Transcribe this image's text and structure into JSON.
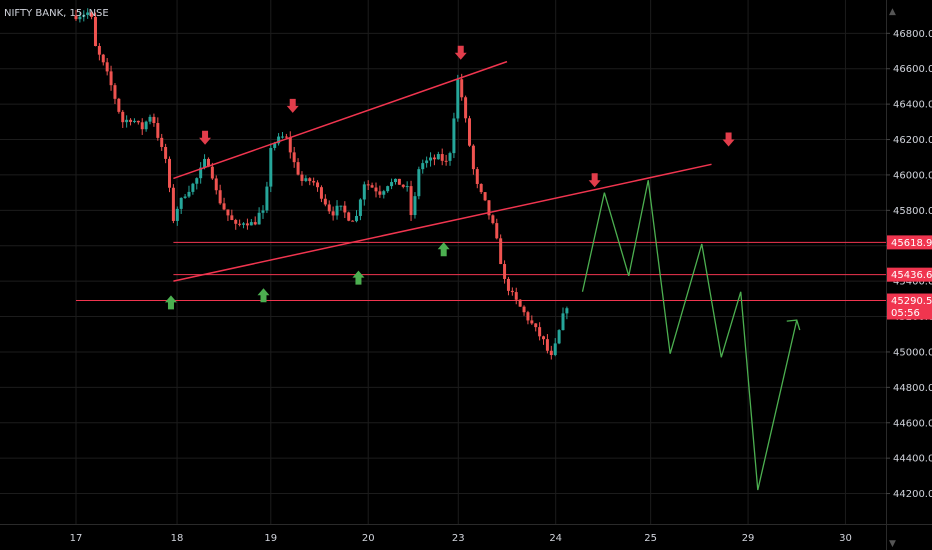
{
  "header": {
    "title": "NIFTY BANK, 15, NSE"
  },
  "colors": {
    "background": "#000000",
    "grid": "#1c1c1c",
    "up_candle": "#26a69a",
    "down_candle": "#ef5350",
    "trendline": "#f0354f",
    "projection": "#4caf50",
    "down_arrow": "#e23d4b",
    "up_arrow": "#4caf50",
    "price_badge": "#f0354f",
    "axis_text": "#d1d4dc"
  },
  "chart_data": {
    "type": "candlestick",
    "symbol": "NIFTY BANK",
    "interval": "15",
    "exchange": "NSE",
    "ylim": [
      44080,
      46960
    ],
    "grid": true,
    "y_ticks": [
      44200,
      44400,
      44600,
      44800,
      45000,
      45200,
      45400,
      45600,
      45800,
      46000,
      46200,
      46400,
      46600,
      46800
    ],
    "x_ticks": [
      {
        "label": "17",
        "t": 0
      },
      {
        "label": "18",
        "t": 4.15
      },
      {
        "label": "19",
        "t": 8.0
      },
      {
        "label": "20",
        "t": 12.0
      },
      {
        "label": "23",
        "t": 15.7
      },
      {
        "label": "24",
        "t": 19.7
      },
      {
        "label": "25",
        "t": 23.6
      },
      {
        "label": "29",
        "t": 27.6
      },
      {
        "label": "30",
        "t": 31.6
      }
    ],
    "price_levels": [
      {
        "label": "45618.90",
        "value": 45618.9
      },
      {
        "label": "45436.60",
        "value": 45436.6
      }
    ],
    "current_price": {
      "label": "45290.50",
      "value": 45290.5,
      "countdown": "05:56"
    },
    "ohlc_path": [
      [
        0.0,
        46900
      ],
      [
        0.6,
        46920
      ],
      [
        0.8,
        46720
      ],
      [
        1.2,
        46600
      ],
      [
        1.5,
        46480
      ],
      [
        1.9,
        46300
      ],
      [
        2.3,
        46320
      ],
      [
        2.7,
        46260
      ],
      [
        3.1,
        46350
      ],
      [
        3.5,
        46150
      ],
      [
        3.8,
        46050
      ],
      [
        3.9,
        45700
      ],
      [
        4.1,
        45800
      ],
      [
        4.5,
        45900
      ],
      [
        4.9,
        45960
      ],
      [
        5.3,
        46080
      ],
      [
        5.5,
        46060
      ],
      [
        5.8,
        45880
      ],
      [
        6.2,
        45780
      ],
      [
        6.6,
        45700
      ],
      [
        6.9,
        45740
      ],
      [
        7.3,
        45720
      ],
      [
        7.6,
        45800
      ],
      [
        7.8,
        45760
      ],
      [
        7.9,
        46150
      ],
      [
        8.3,
        46200
      ],
      [
        8.6,
        46220
      ],
      [
        9.0,
        46050
      ],
      [
        9.3,
        45960
      ],
      [
        9.7,
        45970
      ],
      [
        10.1,
        45880
      ],
      [
        10.5,
        45780
      ],
      [
        10.8,
        45820
      ],
      [
        11.2,
        45760
      ],
      [
        11.5,
        45750
      ],
      [
        11.8,
        45960
      ],
      [
        12.2,
        45930
      ],
      [
        12.5,
        45900
      ],
      [
        12.8,
        45950
      ],
      [
        13.2,
        45960
      ],
      [
        13.6,
        45920
      ],
      [
        13.8,
        45740
      ],
      [
        14.1,
        46060
      ],
      [
        14.5,
        46080
      ],
      [
        14.9,
        46100
      ],
      [
        15.3,
        46060
      ],
      [
        15.7,
        46560
      ],
      [
        16.1,
        46220
      ],
      [
        16.4,
        45960
      ],
      [
        16.8,
        45840
      ],
      [
        17.2,
        45680
      ],
      [
        17.6,
        45400
      ],
      [
        18.0,
        45300
      ],
      [
        18.4,
        45220
      ],
      [
        18.8,
        45140
      ],
      [
        19.2,
        45060
      ],
      [
        19.5,
        44960
      ],
      [
        19.7,
        45040
      ],
      [
        20.0,
        45200
      ],
      [
        20.3,
        45320
      ]
    ],
    "trendlines": [
      {
        "name": "channel-upper",
        "from": [
          4.0,
          45980
        ],
        "to": [
          17.7,
          46640
        ]
      },
      {
        "name": "channel-lower",
        "from": [
          4.0,
          45400
        ],
        "to": [
          26.1,
          46060
        ]
      }
    ],
    "horizontal_lines": [
      {
        "name": "resistance-45618",
        "from_t": 4.0,
        "value": 45618.9
      },
      {
        "name": "support-45436",
        "from_t": 4.0,
        "value": 45436.6
      },
      {
        "name": "current-45290",
        "from_t": 0,
        "value": 45290.5
      }
    ],
    "projection": [
      [
        20.8,
        45340
      ],
      [
        21.7,
        45900
      ],
      [
        22.7,
        45430
      ],
      [
        23.5,
        45970
      ],
      [
        24.4,
        44990
      ],
      [
        25.7,
        45610
      ],
      [
        26.5,
        44970
      ],
      [
        27.3,
        45340
      ],
      [
        28.0,
        44220
      ],
      [
        29.6,
        45180
      ]
    ],
    "down_arrows": [
      [
        5.3,
        46210
      ],
      [
        8.9,
        46390
      ],
      [
        15.8,
        46690
      ],
      [
        21.3,
        45970
      ],
      [
        26.8,
        46200
      ]
    ],
    "up_arrows": [
      [
        3.9,
        45280
      ],
      [
        7.7,
        45320
      ],
      [
        11.6,
        45420
      ],
      [
        15.1,
        45580
      ]
    ]
  }
}
